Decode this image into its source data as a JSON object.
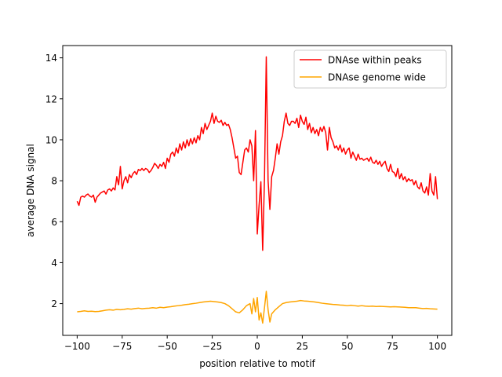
{
  "chart_data": {
    "type": "line",
    "xlabel": "position relative to motif",
    "ylabel": "average DNA signal",
    "xlim": [
      -108,
      108
    ],
    "ylim": [
      0.45,
      14.6
    ],
    "x_ticks": [
      -100,
      -75,
      -50,
      -25,
      0,
      25,
      50,
      75,
      100
    ],
    "x_tick_labels": [
      "−100",
      "−75",
      "−50",
      "−25",
      "0",
      "25",
      "50",
      "75",
      "100"
    ],
    "y_ticks": [
      2,
      4,
      6,
      8,
      10,
      12,
      14
    ],
    "y_tick_labels": [
      "2",
      "4",
      "6",
      "8",
      "10",
      "12",
      "14"
    ],
    "grid": false,
    "legend_position": "top-right",
    "series": [
      {
        "name": "DNAse within peaks",
        "color": "#ff0000",
        "points": [
          [
            -100,
            7.0
          ],
          [
            -99,
            6.8
          ],
          [
            -98,
            7.2
          ],
          [
            -97,
            7.25
          ],
          [
            -96,
            7.2
          ],
          [
            -95,
            7.3
          ],
          [
            -94,
            7.35
          ],
          [
            -93,
            7.25
          ],
          [
            -92,
            7.2
          ],
          [
            -91,
            7.3
          ],
          [
            -90,
            6.95
          ],
          [
            -89,
            7.2
          ],
          [
            -88,
            7.3
          ],
          [
            -87,
            7.4
          ],
          [
            -86,
            7.45
          ],
          [
            -85,
            7.5
          ],
          [
            -84,
            7.35
          ],
          [
            -83,
            7.55
          ],
          [
            -82,
            7.6
          ],
          [
            -81,
            7.5
          ],
          [
            -80,
            7.65
          ],
          [
            -79,
            7.55
          ],
          [
            -78,
            8.2
          ],
          [
            -77,
            7.8
          ],
          [
            -76,
            8.7
          ],
          [
            -75,
            7.6
          ],
          [
            -74,
            8.0
          ],
          [
            -73,
            8.2
          ],
          [
            -72,
            7.9
          ],
          [
            -71,
            8.3
          ],
          [
            -70,
            8.15
          ],
          [
            -69,
            8.35
          ],
          [
            -68,
            8.45
          ],
          [
            -67,
            8.3
          ],
          [
            -66,
            8.55
          ],
          [
            -65,
            8.5
          ],
          [
            -64,
            8.6
          ],
          [
            -63,
            8.5
          ],
          [
            -62,
            8.6
          ],
          [
            -61,
            8.55
          ],
          [
            -60,
            8.4
          ],
          [
            -59,
            8.5
          ],
          [
            -58,
            8.65
          ],
          [
            -57,
            8.85
          ],
          [
            -56,
            8.75
          ],
          [
            -55,
            8.6
          ],
          [
            -54,
            8.8
          ],
          [
            -53,
            8.7
          ],
          [
            -52,
            8.9
          ],
          [
            -51,
            8.6
          ],
          [
            -50,
            9.1
          ],
          [
            -49,
            8.9
          ],
          [
            -48,
            9.3
          ],
          [
            -47,
            9.4
          ],
          [
            -46,
            9.2
          ],
          [
            -45,
            9.6
          ],
          [
            -44,
            9.35
          ],
          [
            -43,
            9.8
          ],
          [
            -42,
            9.5
          ],
          [
            -41,
            9.9
          ],
          [
            -40,
            9.6
          ],
          [
            -39,
            10.0
          ],
          [
            -38,
            9.7
          ],
          [
            -37,
            10.05
          ],
          [
            -36,
            9.8
          ],
          [
            -35,
            10.1
          ],
          [
            -34,
            9.85
          ],
          [
            -33,
            10.2
          ],
          [
            -32,
            10.0
          ],
          [
            -31,
            10.6
          ],
          [
            -30,
            10.3
          ],
          [
            -29,
            10.8
          ],
          [
            -28,
            10.5
          ],
          [
            -27,
            10.7
          ],
          [
            -26,
            10.9
          ],
          [
            -25,
            11.3
          ],
          [
            -24,
            10.8
          ],
          [
            -23,
            11.15
          ],
          [
            -22,
            10.9
          ],
          [
            -21,
            10.85
          ],
          [
            -20,
            10.95
          ],
          [
            -19,
            10.7
          ],
          [
            -18,
            10.85
          ],
          [
            -17,
            10.7
          ],
          [
            -16,
            10.75
          ],
          [
            -15,
            10.5
          ],
          [
            -14,
            10.1
          ],
          [
            -13,
            9.6
          ],
          [
            -12,
            9.1
          ],
          [
            -11,
            9.2
          ],
          [
            -10,
            8.4
          ],
          [
            -9,
            8.3
          ],
          [
            -8,
            8.9
          ],
          [
            -7,
            9.5
          ],
          [
            -6,
            9.6
          ],
          [
            -5,
            9.4
          ],
          [
            -4,
            10.0
          ],
          [
            -3,
            9.7
          ],
          [
            -2,
            8.0
          ],
          [
            -1,
            10.45
          ],
          [
            0,
            5.4
          ],
          [
            1,
            6.8
          ],
          [
            2,
            7.95
          ],
          [
            3,
            4.6
          ],
          [
            4,
            8.1
          ],
          [
            5,
            14.05
          ],
          [
            6,
            8.0
          ],
          [
            7,
            6.6
          ],
          [
            8,
            8.2
          ],
          [
            9,
            8.5
          ],
          [
            10,
            9.1
          ],
          [
            11,
            9.8
          ],
          [
            12,
            9.3
          ],
          [
            13,
            9.9
          ],
          [
            14,
            10.2
          ],
          [
            15,
            10.9
          ],
          [
            16,
            11.3
          ],
          [
            17,
            10.8
          ],
          [
            18,
            10.7
          ],
          [
            19,
            10.9
          ],
          [
            20,
            10.9
          ],
          [
            21,
            10.8
          ],
          [
            22,
            11.05
          ],
          [
            23,
            10.6
          ],
          [
            24,
            11.2
          ],
          [
            25,
            10.9
          ],
          [
            26,
            10.75
          ],
          [
            27,
            11.1
          ],
          [
            28,
            10.5
          ],
          [
            29,
            10.8
          ],
          [
            30,
            10.35
          ],
          [
            31,
            10.6
          ],
          [
            32,
            10.3
          ],
          [
            33,
            10.5
          ],
          [
            34,
            10.2
          ],
          [
            35,
            10.6
          ],
          [
            36,
            10.4
          ],
          [
            37,
            10.65
          ],
          [
            38,
            10.35
          ],
          [
            39,
            9.5
          ],
          [
            40,
            10.6
          ],
          [
            41,
            10.1
          ],
          [
            42,
            9.9
          ],
          [
            43,
            9.6
          ],
          [
            44,
            9.7
          ],
          [
            45,
            9.5
          ],
          [
            46,
            9.75
          ],
          [
            47,
            9.4
          ],
          [
            48,
            9.6
          ],
          [
            49,
            9.3
          ],
          [
            50,
            9.5
          ],
          [
            51,
            9.6
          ],
          [
            52,
            9.1
          ],
          [
            53,
            9.4
          ],
          [
            54,
            9.2
          ],
          [
            55,
            9.0
          ],
          [
            56,
            9.3
          ],
          [
            57,
            9.05
          ],
          [
            58,
            9.1
          ],
          [
            59,
            9.0
          ],
          [
            60,
            9.05
          ],
          [
            61,
            9.1
          ],
          [
            62,
            8.95
          ],
          [
            63,
            9.15
          ],
          [
            64,
            8.9
          ],
          [
            65,
            8.85
          ],
          [
            66,
            9.0
          ],
          [
            67,
            8.8
          ],
          [
            68,
            8.95
          ],
          [
            69,
            8.7
          ],
          [
            70,
            8.85
          ],
          [
            71,
            8.95
          ],
          [
            72,
            8.6
          ],
          [
            73,
            8.45
          ],
          [
            74,
            8.8
          ],
          [
            75,
            8.45
          ],
          [
            76,
            8.4
          ],
          [
            77,
            8.2
          ],
          [
            78,
            8.6
          ],
          [
            79,
            8.1
          ],
          [
            80,
            8.35
          ],
          [
            81,
            8.05
          ],
          [
            82,
            8.2
          ],
          [
            83,
            7.95
          ],
          [
            84,
            8.1
          ],
          [
            85,
            8.0
          ],
          [
            86,
            8.05
          ],
          [
            87,
            7.8
          ],
          [
            88,
            8.0
          ],
          [
            89,
            7.7
          ],
          [
            90,
            7.6
          ],
          [
            91,
            7.9
          ],
          [
            92,
            7.5
          ],
          [
            93,
            7.4
          ],
          [
            94,
            7.7
          ],
          [
            95,
            7.3
          ],
          [
            96,
            8.35
          ],
          [
            97,
            7.5
          ],
          [
            98,
            7.3
          ],
          [
            99,
            8.2
          ],
          [
            100,
            7.1
          ]
        ]
      },
      {
        "name": "DNAse genome wide",
        "color": "#ffa500",
        "points": [
          [
            -100,
            1.6
          ],
          [
            -98,
            1.62
          ],
          [
            -96,
            1.65
          ],
          [
            -94,
            1.62
          ],
          [
            -92,
            1.63
          ],
          [
            -90,
            1.61
          ],
          [
            -88,
            1.62
          ],
          [
            -86,
            1.65
          ],
          [
            -84,
            1.68
          ],
          [
            -82,
            1.7
          ],
          [
            -80,
            1.68
          ],
          [
            -78,
            1.72
          ],
          [
            -76,
            1.7
          ],
          [
            -74,
            1.72
          ],
          [
            -72,
            1.75
          ],
          [
            -70,
            1.73
          ],
          [
            -68,
            1.76
          ],
          [
            -66,
            1.78
          ],
          [
            -64,
            1.75
          ],
          [
            -62,
            1.77
          ],
          [
            -60,
            1.78
          ],
          [
            -58,
            1.8
          ],
          [
            -56,
            1.78
          ],
          [
            -54,
            1.82
          ],
          [
            -52,
            1.8
          ],
          [
            -50,
            1.83
          ],
          [
            -48,
            1.85
          ],
          [
            -46,
            1.88
          ],
          [
            -44,
            1.9
          ],
          [
            -42,
            1.92
          ],
          [
            -40,
            1.95
          ],
          [
            -38,
            1.97
          ],
          [
            -36,
            2.0
          ],
          [
            -34,
            2.02
          ],
          [
            -32,
            2.05
          ],
          [
            -30,
            2.08
          ],
          [
            -28,
            2.1
          ],
          [
            -26,
            2.12
          ],
          [
            -24,
            2.1
          ],
          [
            -22,
            2.08
          ],
          [
            -20,
            2.05
          ],
          [
            -18,
            2.0
          ],
          [
            -16,
            1.9
          ],
          [
            -14,
            1.75
          ],
          [
            -12,
            1.6
          ],
          [
            -10,
            1.55
          ],
          [
            -8,
            1.7
          ],
          [
            -6,
            1.9
          ],
          [
            -4,
            2.0
          ],
          [
            -3,
            1.5
          ],
          [
            -2,
            2.25
          ],
          [
            -1,
            1.6
          ],
          [
            0,
            2.3
          ],
          [
            1,
            1.2
          ],
          [
            2,
            1.55
          ],
          [
            3,
            1.05
          ],
          [
            4,
            1.8
          ],
          [
            5,
            2.6
          ],
          [
            6,
            1.7
          ],
          [
            7,
            1.1
          ],
          [
            8,
            1.5
          ],
          [
            10,
            1.7
          ],
          [
            12,
            1.85
          ],
          [
            14,
            2.0
          ],
          [
            16,
            2.05
          ],
          [
            18,
            2.08
          ],
          [
            20,
            2.1
          ],
          [
            22,
            2.12
          ],
          [
            24,
            2.15
          ],
          [
            26,
            2.13
          ],
          [
            28,
            2.12
          ],
          [
            30,
            2.1
          ],
          [
            32,
            2.08
          ],
          [
            34,
            2.05
          ],
          [
            36,
            2.02
          ],
          [
            38,
            2.0
          ],
          [
            40,
            1.98
          ],
          [
            42,
            1.96
          ],
          [
            44,
            1.95
          ],
          [
            46,
            1.93
          ],
          [
            48,
            1.92
          ],
          [
            50,
            1.9
          ],
          [
            52,
            1.92
          ],
          [
            54,
            1.9
          ],
          [
            56,
            1.88
          ],
          [
            58,
            1.9
          ],
          [
            60,
            1.88
          ],
          [
            62,
            1.87
          ],
          [
            64,
            1.88
          ],
          [
            66,
            1.86
          ],
          [
            68,
            1.87
          ],
          [
            70,
            1.86
          ],
          [
            72,
            1.85
          ],
          [
            74,
            1.84
          ],
          [
            76,
            1.85
          ],
          [
            78,
            1.84
          ],
          [
            80,
            1.83
          ],
          [
            82,
            1.82
          ],
          [
            84,
            1.8
          ],
          [
            86,
            1.8
          ],
          [
            88,
            1.8
          ],
          [
            90,
            1.78
          ],
          [
            92,
            1.76
          ],
          [
            94,
            1.77
          ],
          [
            96,
            1.75
          ],
          [
            98,
            1.74
          ],
          [
            100,
            1.73
          ]
        ]
      }
    ]
  }
}
